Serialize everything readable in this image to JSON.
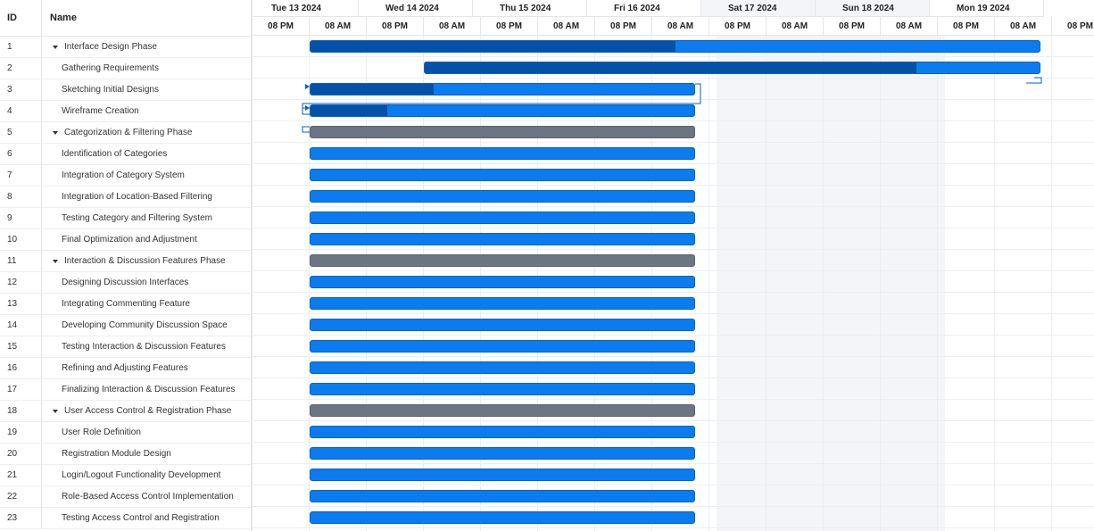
{
  "grid": {
    "header_id": "ID",
    "header_name": "Name"
  },
  "timeline": {
    "days": [
      {
        "label": "Tue 13 2024",
        "weekend": false
      },
      {
        "label": "Wed 14 2024",
        "weekend": false
      },
      {
        "label": "Thu 15 2024",
        "weekend": false
      },
      {
        "label": "Fri 16 2024",
        "weekend": false
      },
      {
        "label": "Sat 17 2024",
        "weekend": true
      },
      {
        "label": "Sun 18 2024",
        "weekend": true
      },
      {
        "label": "Mon 19 2024",
        "weekend": false
      }
    ],
    "hours": [
      "08 PM",
      "08 AM",
      "08 PM",
      "08 AM",
      "08 PM",
      "08 AM",
      "08 PM",
      "08 AM",
      "08 PM",
      "08 AM",
      "08 PM",
      "08 AM",
      "08 PM",
      "08 AM",
      "08 PM"
    ]
  },
  "tasks": [
    {
      "id": "1",
      "name": "Interface Design Phase",
      "parent": true,
      "summary": false,
      "start": 1,
      "end": 13.8,
      "progress": 0.5
    },
    {
      "id": "2",
      "name": "Gathering Requirements",
      "parent": false,
      "summary": false,
      "start": 3,
      "end": 13.8,
      "progress": 0.8
    },
    {
      "id": "3",
      "name": "Sketching Initial Designs",
      "parent": false,
      "summary": false,
      "start": 1,
      "end": 7.75,
      "progress": 0.32
    },
    {
      "id": "4",
      "name": "Wireframe Creation",
      "parent": false,
      "summary": false,
      "start": 1,
      "end": 7.75,
      "progress": 0.2
    },
    {
      "id": "5",
      "name": "Categorization & Filtering Phase",
      "parent": true,
      "summary": true,
      "start": 1,
      "end": 7.75,
      "progress": 0
    },
    {
      "id": "6",
      "name": "Identification of Categories",
      "parent": false,
      "summary": false,
      "start": 1,
      "end": 7.75,
      "progress": 0
    },
    {
      "id": "7",
      "name": "Integration of Category System",
      "parent": false,
      "summary": false,
      "start": 1,
      "end": 7.75,
      "progress": 0
    },
    {
      "id": "8",
      "name": "Integration of Location-Based Filtering",
      "parent": false,
      "summary": false,
      "start": 1,
      "end": 7.75,
      "progress": 0
    },
    {
      "id": "9",
      "name": "Testing Category and Filtering System",
      "parent": false,
      "summary": false,
      "start": 1,
      "end": 7.75,
      "progress": 0
    },
    {
      "id": "10",
      "name": "Final Optimization and Adjustment",
      "parent": false,
      "summary": false,
      "start": 1,
      "end": 7.75,
      "progress": 0
    },
    {
      "id": "11",
      "name": "Interaction & Discussion Features Phase",
      "parent": true,
      "summary": true,
      "start": 1,
      "end": 7.75,
      "progress": 0
    },
    {
      "id": "12",
      "name": "Designing Discussion Interfaces",
      "parent": false,
      "summary": false,
      "start": 1,
      "end": 7.75,
      "progress": 0
    },
    {
      "id": "13",
      "name": "Integrating Commenting Feature",
      "parent": false,
      "summary": false,
      "start": 1,
      "end": 7.75,
      "progress": 0
    },
    {
      "id": "14",
      "name": "Developing Community Discussion Space",
      "parent": false,
      "summary": false,
      "start": 1,
      "end": 7.75,
      "progress": 0
    },
    {
      "id": "15",
      "name": "Testing Interaction & Discussion Features",
      "parent": false,
      "summary": false,
      "start": 1,
      "end": 7.75,
      "progress": 0
    },
    {
      "id": "16",
      "name": "Refining and Adjusting Features",
      "parent": false,
      "summary": false,
      "start": 1,
      "end": 7.75,
      "progress": 0
    },
    {
      "id": "17",
      "name": "Finalizing Interaction & Discussion Features",
      "parent": false,
      "summary": false,
      "start": 1,
      "end": 7.75,
      "progress": 0
    },
    {
      "id": "18",
      "name": "User Access Control & Registration Phase",
      "parent": true,
      "summary": true,
      "start": 1,
      "end": 7.75,
      "progress": 0
    },
    {
      "id": "19",
      "name": "User Role Definition",
      "parent": false,
      "summary": false,
      "start": 1,
      "end": 7.75,
      "progress": 0
    },
    {
      "id": "20",
      "name": "Registration Module Design",
      "parent": false,
      "summary": false,
      "start": 1,
      "end": 7.75,
      "progress": 0
    },
    {
      "id": "21",
      "name": "Login/Logout Functionality Development",
      "parent": false,
      "summary": false,
      "start": 1,
      "end": 7.75,
      "progress": 0
    },
    {
      "id": "22",
      "name": "Role-Based Access Control Implementation",
      "parent": false,
      "summary": false,
      "start": 1,
      "end": 7.75,
      "progress": 0
    },
    {
      "id": "23",
      "name": "Testing Access Control and Registration",
      "parent": false,
      "summary": false,
      "start": 1,
      "end": 7.75,
      "progress": 0
    }
  ],
  "colors": {
    "task_bar": "#0a7cf0",
    "task_progress": "#0452a8",
    "summary_bar": "#6c7682",
    "weekend_bg": "#f4f5f8",
    "grid_line": "#eceef1"
  }
}
